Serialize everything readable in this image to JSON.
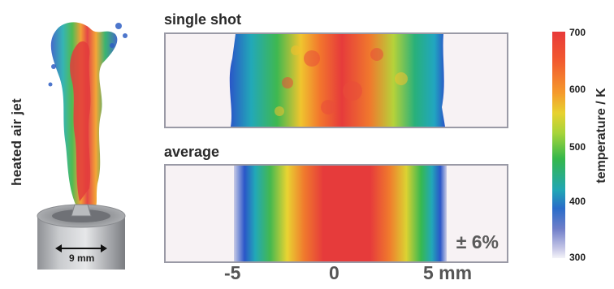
{
  "left": {
    "side_label": "heated air jet",
    "nozzle_dimension": "9 mm"
  },
  "panels": {
    "single_title": "single shot",
    "average_title": "average",
    "uncertainty": "± 6%"
  },
  "axis": {
    "ticks": [
      "-5",
      "0",
      "5 mm"
    ]
  },
  "colorbar": {
    "label": "temperature / K",
    "ticks": [
      "700",
      "600",
      "500",
      "400",
      "300"
    ],
    "colors": [
      "#e83a3a",
      "#f59a2c",
      "#e7d22f",
      "#35b84a",
      "#21a6b5",
      "#2a6cc9",
      "#f3f3f8"
    ]
  }
}
